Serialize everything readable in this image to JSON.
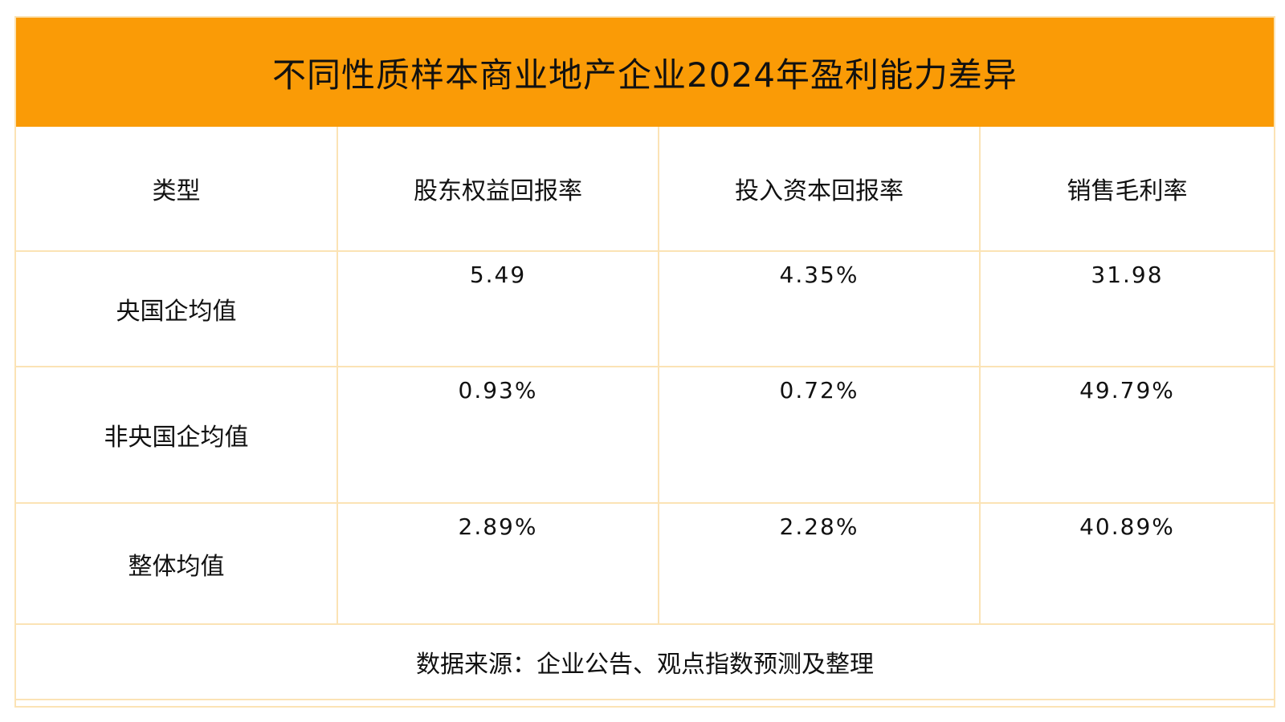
{
  "title": "不同性质样本商业地产企业2024年盈利能力差异",
  "headers": [
    "类型",
    "股东权益回报率",
    "投入资本回报率",
    "销售毛利率"
  ],
  "rows": [
    {
      "type": "央国企均值",
      "roe": "5.49",
      "roic": "4.35%",
      "gross_margin": "31.98"
    },
    {
      "type": "非央国企均值",
      "roe": "0.93%",
      "roic": "0.72%",
      "gross_margin": "49.79%"
    },
    {
      "type": "整体均值",
      "roe": "2.89%",
      "roic": "2.28%",
      "gross_margin": "40.89%"
    }
  ],
  "source": "数据来源：企业公告、观点指数预测及整理",
  "colors": {
    "title_bg": "#fa9b06",
    "grid_line": "#fbe3b5"
  }
}
